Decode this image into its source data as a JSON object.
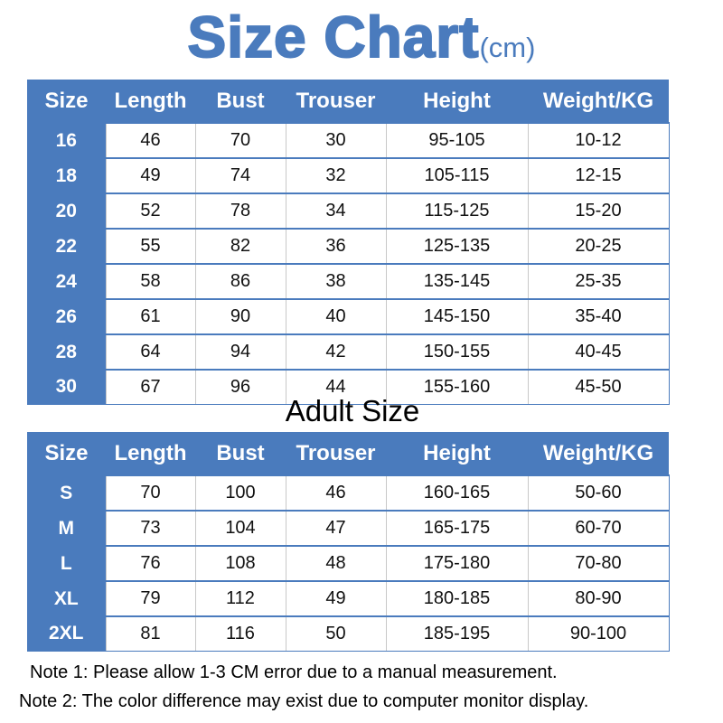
{
  "title": {
    "main": "Size Chart",
    "unit": "(cm)"
  },
  "colors": {
    "accent": "#4a7bbd"
  },
  "headers": [
    "Size",
    "Length",
    "Bust",
    "Trouser",
    "Height",
    "Weight/KG"
  ],
  "kids_table": {
    "rows": [
      [
        "16",
        "46",
        "70",
        "30",
        "95-105",
        "10-12"
      ],
      [
        "18",
        "49",
        "74",
        "32",
        "105-115",
        "12-15"
      ],
      [
        "20",
        "52",
        "78",
        "34",
        "115-125",
        "15-20"
      ],
      [
        "22",
        "55",
        "82",
        "36",
        "125-135",
        "20-25"
      ],
      [
        "24",
        "58",
        "86",
        "38",
        "135-145",
        "25-35"
      ],
      [
        "26",
        "61",
        "90",
        "40",
        "145-150",
        "35-40"
      ],
      [
        "28",
        "64",
        "94",
        "42",
        "150-155",
        "40-45"
      ],
      [
        "30",
        "67",
        "96",
        "44",
        "155-160",
        "45-50"
      ]
    ]
  },
  "adult_heading": "Adult Size",
  "adult_table": {
    "rows": [
      [
        "S",
        "70",
        "100",
        "46",
        "160-165",
        "50-60"
      ],
      [
        "M",
        "73",
        "104",
        "47",
        "165-175",
        "60-70"
      ],
      [
        "L",
        "76",
        "108",
        "48",
        "175-180",
        "70-80"
      ],
      [
        "XL",
        "79",
        "112",
        "49",
        "180-185",
        "80-90"
      ],
      [
        "2XL",
        "81",
        "116",
        "50",
        "185-195",
        "90-100"
      ]
    ]
  },
  "notes": [
    "Note 1: Please allow 1-3 CM error due to a manual measurement.",
    "Note 2: The color difference may exist due to computer monitor display."
  ]
}
